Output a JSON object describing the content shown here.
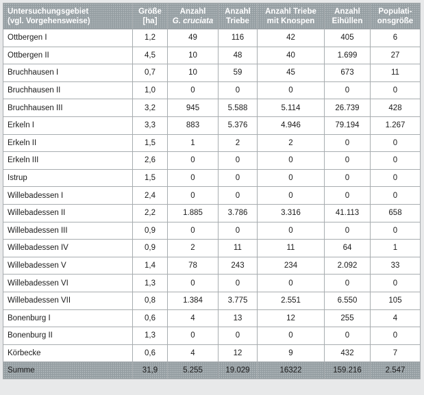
{
  "table": {
    "headers": [
      {
        "line1": "Untersuchungsgebiet",
        "line2": "(vgl. Vorgehensweise)"
      },
      {
        "line1": "Größe",
        "line2": "[ha]"
      },
      {
        "line1": "Anzahl",
        "line2": "G. cruciata"
      },
      {
        "line1": "Anzahl",
        "line2": "Triebe"
      },
      {
        "line1": "Anzahl Triebe",
        "line2": "mit Knospen"
      },
      {
        "line1": "Anzahl",
        "line2": "Eihüllen"
      },
      {
        "line1": "Populati-",
        "line2": "onsgröße"
      }
    ],
    "rows": [
      [
        "Ottbergen I",
        "1,2",
        "49",
        "116",
        "42",
        "405",
        "6"
      ],
      [
        "Ottbergen II",
        "4,5",
        "10",
        "48",
        "40",
        "1.699",
        "27"
      ],
      [
        "Bruchhausen I",
        "0,7",
        "10",
        "59",
        "45",
        "673",
        "11"
      ],
      [
        "Bruchhausen II",
        "1,0",
        "0",
        "0",
        "0",
        "0",
        "0"
      ],
      [
        "Bruchhausen III",
        "3,2",
        "945",
        "5.588",
        "5.114",
        "26.739",
        "428"
      ],
      [
        "Erkeln I",
        "3,3",
        "883",
        "5.376",
        "4.946",
        "79.194",
        "1.267"
      ],
      [
        "Erkeln II",
        "1,5",
        "1",
        "2",
        "2",
        "0",
        "0"
      ],
      [
        "Erkeln III",
        "2,6",
        "0",
        "0",
        "0",
        "0",
        "0"
      ],
      [
        "Istrup",
        "1,5",
        "0",
        "0",
        "0",
        "0",
        "0"
      ],
      [
        "Willebadessen I",
        "2,4",
        "0",
        "0",
        "0",
        "0",
        "0"
      ],
      [
        "Willebadessen II",
        "2,2",
        "1.885",
        "3.786",
        "3.316",
        "41.113",
        "658"
      ],
      [
        "Willebadessen III",
        "0,9",
        "0",
        "0",
        "0",
        "0",
        "0"
      ],
      [
        "Willebadessen IV",
        "0,9",
        "2",
        "11",
        "11",
        "64",
        "1"
      ],
      [
        "Willebadessen V",
        "1,4",
        "78",
        "243",
        "234",
        "2.092",
        "33"
      ],
      [
        "Willebadessen VI",
        "1,3",
        "0",
        "0",
        "0",
        "0",
        "0"
      ],
      [
        "Willebadessen VII",
        "0,8",
        "1.384",
        "3.775",
        "2.551",
        "6.550",
        "105"
      ],
      [
        "Bonenburg I",
        "0,6",
        "4",
        "13",
        "12",
        "255",
        "4"
      ],
      [
        "Bonenburg II",
        "1,3",
        "0",
        "0",
        "0",
        "0",
        "0"
      ],
      [
        "Körbecke",
        "0,6",
        "4",
        "12",
        "9",
        "432",
        "7"
      ]
    ],
    "sum": [
      "Summe",
      "31,9",
      "5.255",
      "19.029",
      "16322",
      "159.216",
      "2.547"
    ]
  }
}
